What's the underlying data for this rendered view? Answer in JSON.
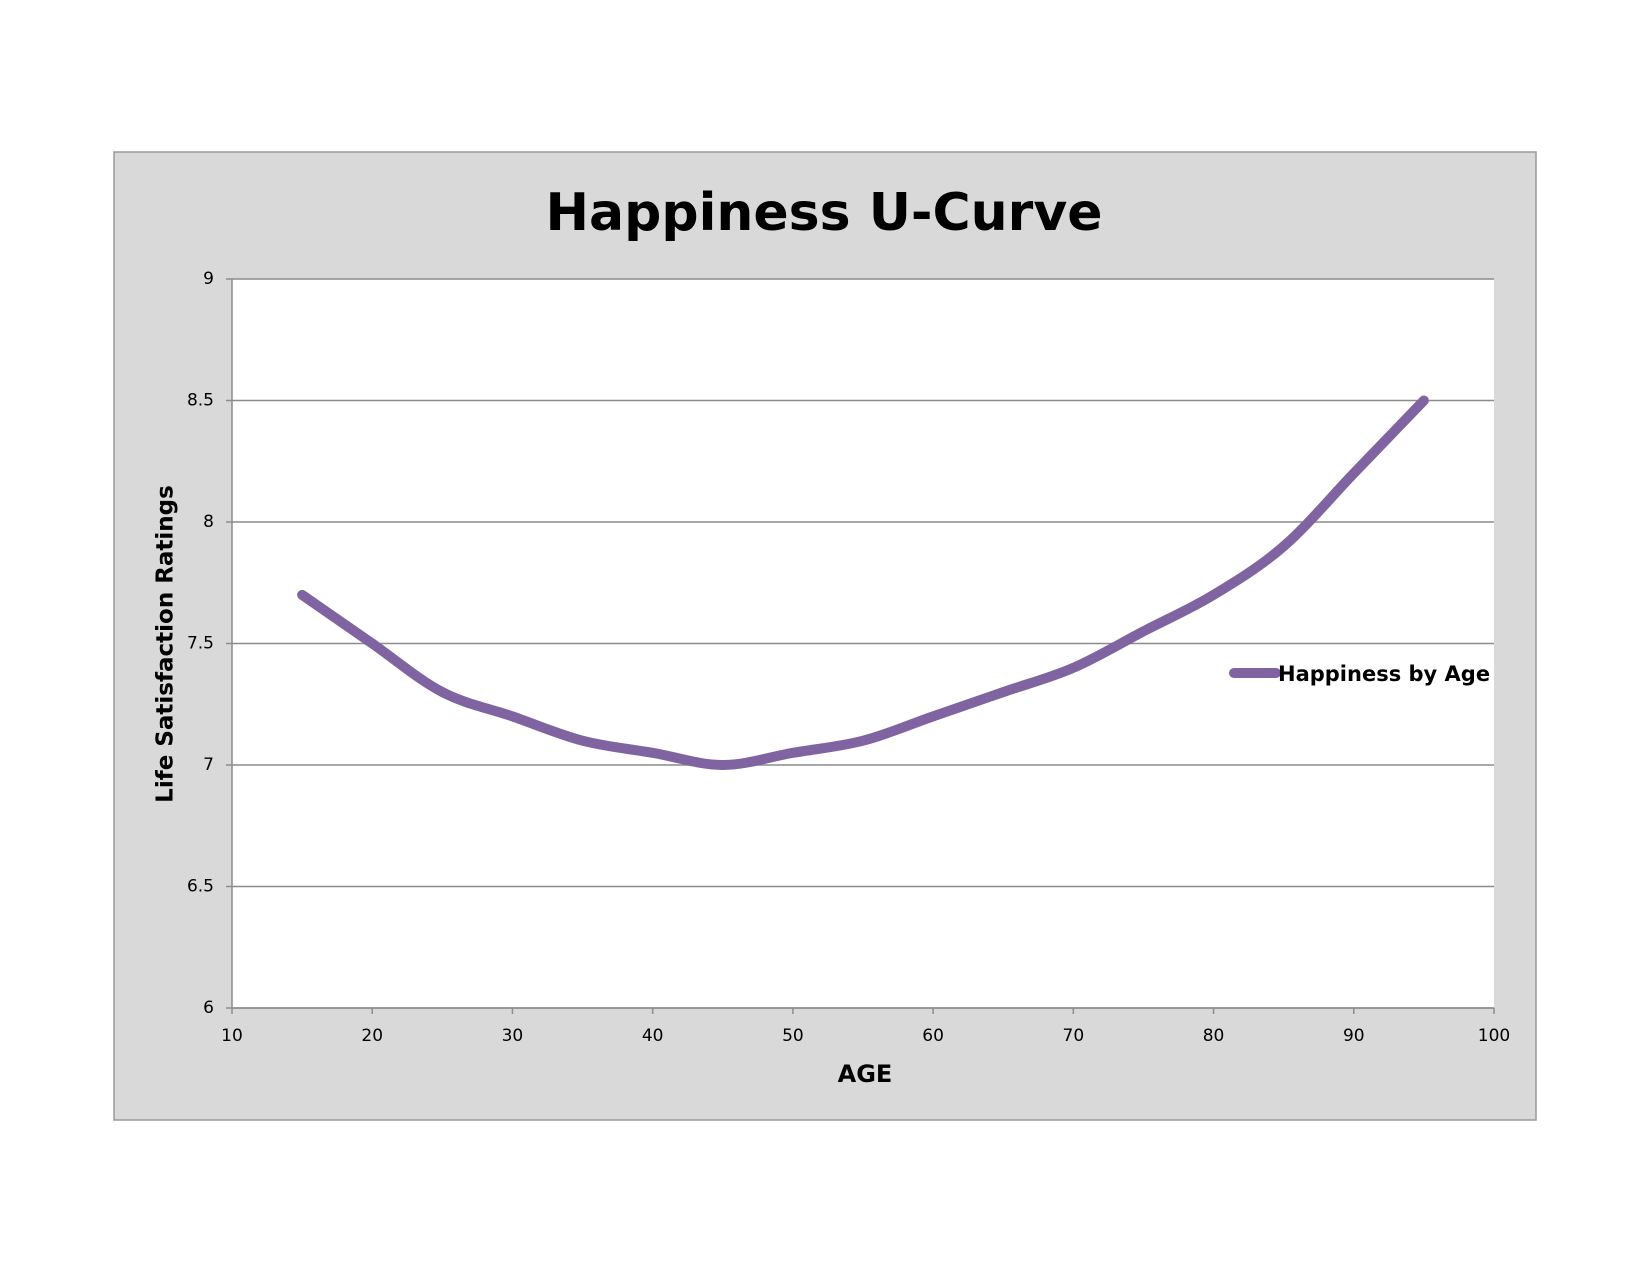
{
  "chart_data": {
    "type": "line",
    "title": "Happiness U-Curve",
    "x_label": "AGE",
    "y_label": "Life Satisfaction Ratings",
    "x": [
      15,
      20,
      25,
      30,
      35,
      40,
      45,
      50,
      55,
      60,
      65,
      70,
      75,
      80,
      85,
      90,
      95
    ],
    "series": [
      {
        "name": "Happiness by Age",
        "color": "#8064a2",
        "values": [
          7.7,
          7.5,
          7.3,
          7.2,
          7.1,
          7.05,
          7.0,
          7.05,
          7.1,
          7.2,
          7.3,
          7.4,
          7.55,
          7.7,
          7.9,
          8.2,
          8.5
        ]
      }
    ],
    "xlim": [
      10,
      100
    ],
    "xticks": [
      10,
      20,
      30,
      40,
      50,
      60,
      70,
      80,
      90,
      100
    ],
    "ylim": [
      6,
      9
    ],
    "yticks": [
      6,
      6.5,
      7,
      7.5,
      8,
      8.5,
      9
    ],
    "grid": true,
    "legend": "right"
  }
}
